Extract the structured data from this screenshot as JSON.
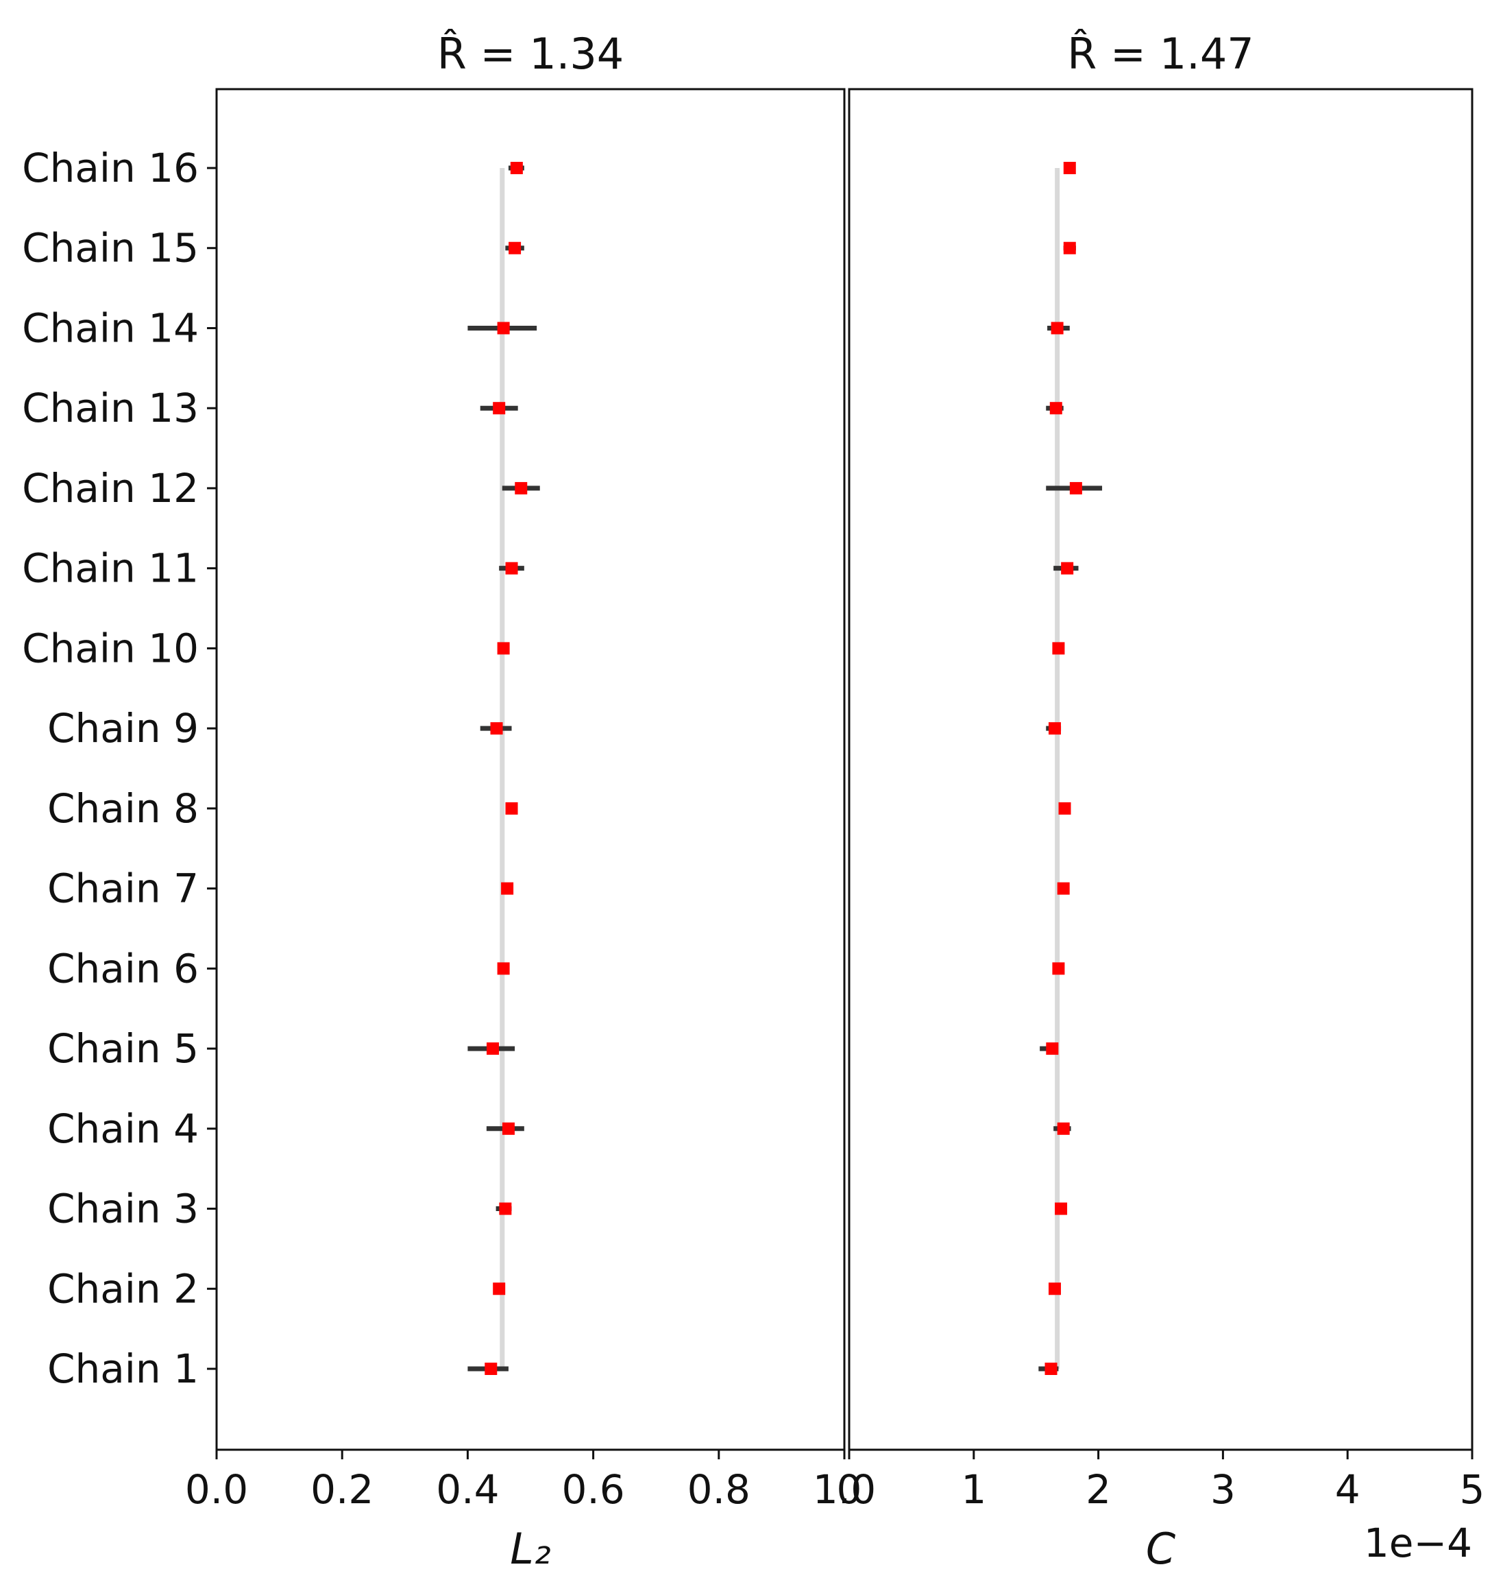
{
  "chart_data": [
    {
      "type": "scatter",
      "title": "R̂ = 1.34",
      "xlabel": "L₂",
      "ylabel": "",
      "xlim": [
        0.0,
        1.0
      ],
      "xticks": [
        "0.0",
        "0.2",
        "0.4",
        "0.6",
        "0.8",
        "1.0"
      ],
      "xtick_values": [
        0.0,
        0.2,
        0.4,
        0.6,
        0.8,
        1.0
      ],
      "categories": [
        "Chain 1",
        "Chain 2",
        "Chain 3",
        "Chain 4",
        "Chain 5",
        "Chain 6",
        "Chain 7",
        "Chain 8",
        "Chain 9",
        "Chain 10",
        "Chain 11",
        "Chain 12",
        "Chain 13",
        "Chain 14",
        "Chain 15",
        "Chain 16"
      ],
      "reference_line": 0.455,
      "means": [
        0.437,
        0.45,
        0.46,
        0.465,
        0.44,
        0.457,
        0.463,
        0.47,
        0.446,
        0.457,
        0.47,
        0.485,
        0.45,
        0.457,
        0.475,
        0.478
      ],
      "interval_low": [
        0.4,
        0.445,
        0.445,
        0.43,
        0.4,
        0.452,
        0.458,
        0.465,
        0.42,
        0.45,
        0.45,
        0.455,
        0.42,
        0.4,
        0.46,
        0.465
      ],
      "interval_high": [
        0.465,
        0.455,
        0.47,
        0.49,
        0.475,
        0.462,
        0.468,
        0.475,
        0.47,
        0.465,
        0.49,
        0.515,
        0.48,
        0.51,
        0.49,
        0.49
      ],
      "grid": false,
      "marker_color": "#ff0000",
      "interval_color": "#333333",
      "reference_color": "#d9d9d9"
    },
    {
      "type": "scatter",
      "title": "R̂ = 1.47",
      "xlabel": "C",
      "ylabel": "",
      "xlim": [
        0,
        5
      ],
      "xticks": [
        "0",
        "1",
        "2",
        "3",
        "4",
        "5"
      ],
      "xtick_values": [
        0,
        1,
        2,
        3,
        4,
        5
      ],
      "x_scale_label": "1e−4",
      "categories": [
        "Chain 1",
        "Chain 2",
        "Chain 3",
        "Chain 4",
        "Chain 5",
        "Chain 6",
        "Chain 7",
        "Chain 8",
        "Chain 9",
        "Chain 10",
        "Chain 11",
        "Chain 12",
        "Chain 13",
        "Chain 14",
        "Chain 15",
        "Chain 16"
      ],
      "reference_line": 1.67,
      "means": [
        1.62,
        1.65,
        1.7,
        1.72,
        1.63,
        1.68,
        1.72,
        1.73,
        1.65,
        1.68,
        1.75,
        1.82,
        1.66,
        1.67,
        1.77,
        1.77
      ],
      "interval_low": [
        1.52,
        1.62,
        1.67,
        1.64,
        1.53,
        1.65,
        1.7,
        1.71,
        1.58,
        1.66,
        1.64,
        1.58,
        1.58,
        1.59,
        1.72,
        1.74
      ],
      "interval_high": [
        1.68,
        1.68,
        1.74,
        1.78,
        1.67,
        1.71,
        1.74,
        1.75,
        1.7,
        1.7,
        1.84,
        2.03,
        1.72,
        1.77,
        1.82,
        1.8
      ],
      "grid": false,
      "marker_color": "#ff0000",
      "interval_color": "#333333",
      "reference_color": "#d9d9d9"
    }
  ]
}
